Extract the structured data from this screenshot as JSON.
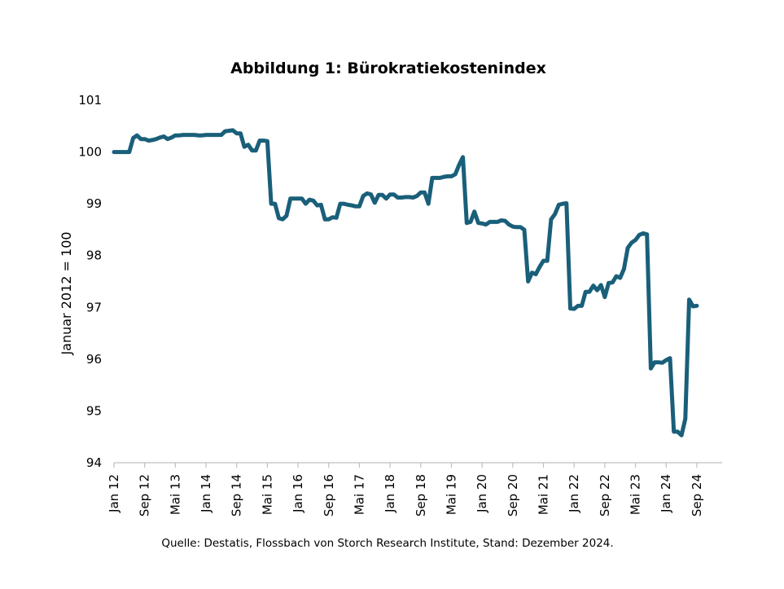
{
  "chart_data": {
    "type": "line",
    "title": "Abbildung 1: Bürokratiekostenindex",
    "xlabel": "",
    "ylabel": "Januar 2012 = 100",
    "source": "Quelle: Destatis, Flossbach von Storch Research Institute, Stand: Dezember 2024.",
    "ylim": [
      94,
      101
    ],
    "yticks": [
      94,
      95,
      96,
      97,
      98,
      99,
      100,
      101
    ],
    "xticks": [
      {
        "label": "Jan 12",
        "month": 0
      },
      {
        "label": "Sep 12",
        "month": 8
      },
      {
        "label": "Mai 13",
        "month": 16
      },
      {
        "label": "Jan 14",
        "month": 24
      },
      {
        "label": "Sep 14",
        "month": 32
      },
      {
        "label": "Mai 15",
        "month": 40
      },
      {
        "label": "Jan 16",
        "month": 48
      },
      {
        "label": "Sep 16",
        "month": 56
      },
      {
        "label": "Mai 17",
        "month": 64
      },
      {
        "label": "Jan 18",
        "month": 72
      },
      {
        "label": "Sep 18",
        "month": 80
      },
      {
        "label": "Mai 19",
        "month": 88
      },
      {
        "label": "Jan 20",
        "month": 96
      },
      {
        "label": "Sep 20",
        "month": 104
      },
      {
        "label": "Mai 21",
        "month": 112
      },
      {
        "label": "Jan 22",
        "month": 120
      },
      {
        "label": "Sep 22",
        "month": 128
      },
      {
        "label": "Mai 23",
        "month": 136
      },
      {
        "label": "Jan 24",
        "month": 144
      },
      {
        "label": "Sep 24",
        "month": 152
      }
    ],
    "x_range": [
      0,
      155
    ],
    "series": [
      {
        "name": "Bürokratiekostenindex",
        "color": "#1a5f7a",
        "points": [
          [
            0,
            100.0
          ],
          [
            1,
            100.0
          ],
          [
            2,
            100.0
          ],
          [
            3,
            100.0
          ],
          [
            4,
            100.0
          ],
          [
            5,
            100.27
          ],
          [
            6,
            100.32
          ],
          [
            7,
            100.25
          ],
          [
            8,
            100.25
          ],
          [
            9,
            100.22
          ],
          [
            10,
            100.23
          ],
          [
            11,
            100.25
          ],
          [
            12,
            100.28
          ],
          [
            13,
            100.3
          ],
          [
            14,
            100.25
          ],
          [
            15,
            100.28
          ],
          [
            16,
            100.32
          ],
          [
            17,
            100.32
          ],
          [
            18,
            100.33
          ],
          [
            19,
            100.33
          ],
          [
            20,
            100.33
          ],
          [
            21,
            100.33
          ],
          [
            22,
            100.32
          ],
          [
            23,
            100.32
          ],
          [
            24,
            100.33
          ],
          [
            25,
            100.33
          ],
          [
            26,
            100.33
          ],
          [
            27,
            100.33
          ],
          [
            28,
            100.33
          ],
          [
            29,
            100.4
          ],
          [
            30,
            100.41
          ],
          [
            31,
            100.42
          ],
          [
            32,
            100.36
          ],
          [
            33,
            100.36
          ],
          [
            34,
            100.1
          ],
          [
            35,
            100.14
          ],
          [
            36,
            100.03
          ],
          [
            37,
            100.03
          ],
          [
            38,
            100.22
          ],
          [
            39,
            100.22
          ],
          [
            40,
            100.21
          ],
          [
            41,
            99.0
          ],
          [
            42,
            99.0
          ],
          [
            43,
            98.72
          ],
          [
            44,
            98.7
          ],
          [
            45,
            98.77
          ],
          [
            46,
            99.1
          ],
          [
            47,
            99.1
          ],
          [
            48,
            99.1
          ],
          [
            49,
            99.1
          ],
          [
            50,
            99.0
          ],
          [
            51,
            99.08
          ],
          [
            52,
            99.06
          ],
          [
            53,
            98.97
          ],
          [
            54,
            98.98
          ],
          [
            55,
            98.7
          ],
          [
            56,
            98.7
          ],
          [
            57,
            98.74
          ],
          [
            58,
            98.73
          ],
          [
            59,
            99.0
          ],
          [
            60,
            99.0
          ],
          [
            61,
            98.98
          ],
          [
            62,
            98.97
          ],
          [
            63,
            98.95
          ],
          [
            64,
            98.95
          ],
          [
            65,
            99.15
          ],
          [
            66,
            99.2
          ],
          [
            67,
            99.18
          ],
          [
            68,
            99.02
          ],
          [
            69,
            99.17
          ],
          [
            70,
            99.17
          ],
          [
            71,
            99.1
          ],
          [
            72,
            99.18
          ],
          [
            73,
            99.18
          ],
          [
            74,
            99.12
          ],
          [
            75,
            99.12
          ],
          [
            76,
            99.13
          ],
          [
            77,
            99.13
          ],
          [
            78,
            99.12
          ],
          [
            79,
            99.15
          ],
          [
            80,
            99.22
          ],
          [
            81,
            99.22
          ],
          [
            82,
            99.0
          ],
          [
            83,
            99.5
          ],
          [
            84,
            99.5
          ],
          [
            85,
            99.5
          ],
          [
            86,
            99.52
          ],
          [
            87,
            99.53
          ],
          [
            88,
            99.53
          ],
          [
            89,
            99.57
          ],
          [
            90,
            99.75
          ],
          [
            91,
            99.9
          ],
          [
            92,
            98.63
          ],
          [
            93,
            98.65
          ],
          [
            94,
            98.85
          ],
          [
            95,
            98.63
          ],
          [
            96,
            98.62
          ],
          [
            97,
            98.6
          ],
          [
            98,
            98.65
          ],
          [
            99,
            98.65
          ],
          [
            100,
            98.65
          ],
          [
            101,
            98.68
          ],
          [
            102,
            98.67
          ],
          [
            103,
            98.6
          ],
          [
            104,
            98.56
          ],
          [
            105,
            98.55
          ],
          [
            106,
            98.55
          ],
          [
            107,
            98.5
          ],
          [
            108,
            97.5
          ],
          [
            109,
            97.67
          ],
          [
            110,
            97.64
          ],
          [
            111,
            97.78
          ],
          [
            112,
            97.9
          ],
          [
            113,
            97.9
          ],
          [
            114,
            98.7
          ],
          [
            115,
            98.8
          ],
          [
            116,
            98.98
          ],
          [
            117,
            99.0
          ],
          [
            118,
            99.01
          ],
          [
            119,
            96.98
          ],
          [
            120,
            96.97
          ],
          [
            121,
            97.03
          ],
          [
            122,
            97.03
          ],
          [
            123,
            97.3
          ],
          [
            124,
            97.3
          ],
          [
            125,
            97.42
          ],
          [
            126,
            97.33
          ],
          [
            127,
            97.43
          ],
          [
            128,
            97.2
          ],
          [
            129,
            97.47
          ],
          [
            130,
            97.48
          ],
          [
            131,
            97.6
          ],
          [
            132,
            97.57
          ],
          [
            133,
            97.74
          ],
          [
            134,
            98.15
          ],
          [
            135,
            98.25
          ],
          [
            136,
            98.3
          ],
          [
            137,
            98.4
          ],
          [
            138,
            98.43
          ],
          [
            139,
            98.41
          ],
          [
            140,
            95.82
          ],
          [
            141,
            95.94
          ],
          [
            142,
            95.94
          ],
          [
            143,
            95.93
          ],
          [
            144,
            95.98
          ],
          [
            145,
            96.02
          ],
          [
            146,
            94.6
          ],
          [
            147,
            94.6
          ],
          [
            148,
            94.53
          ],
          [
            149,
            94.85
          ],
          [
            150,
            97.15
          ],
          [
            151,
            97.02
          ],
          [
            152,
            97.03
          ]
        ]
      }
    ]
  }
}
